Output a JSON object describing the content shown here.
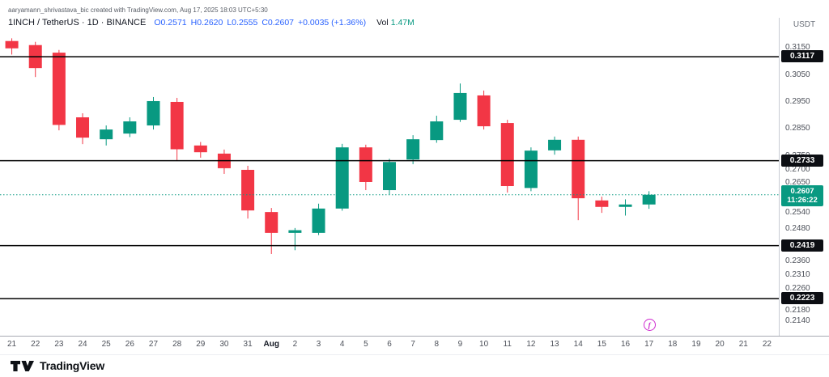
{
  "attribution": "aaryamann_shrivastava_bic created with TradingView.com, Aug 17, 2025 18:03 UTC+5:30",
  "legend": {
    "symbol": "1INCH / TetherUS · 1D · BINANCE",
    "ohlc": [
      {
        "k": "O",
        "v": "0.2571"
      },
      {
        "k": "H",
        "v": "0.2620"
      },
      {
        "k": "L",
        "v": "0.2555"
      },
      {
        "k": "C",
        "v": "0.2607"
      }
    ],
    "change": "+0.0035 (+1.36%)",
    "value_color": "#2962ff",
    "vol_label": "Vol",
    "vol_value": "1.47M",
    "vol_color": "#089981"
  },
  "price_axis": {
    "currency": "USDT",
    "ticks": [
      {
        "label": "0.3150",
        "price": 0.315
      },
      {
        "label": "0.3050",
        "price": 0.305
      },
      {
        "label": "0.2950",
        "price": 0.295
      },
      {
        "label": "0.2850",
        "price": 0.285
      },
      {
        "label": "0.2750",
        "price": 0.275
      },
      {
        "label": "0.2700",
        "price": 0.27
      },
      {
        "label": "0.2650",
        "price": 0.265
      },
      {
        "label": "0.2540",
        "price": 0.254
      },
      {
        "label": "0.2480",
        "price": 0.248
      },
      {
        "label": "0.2360",
        "price": 0.236
      },
      {
        "label": "0.2310",
        "price": 0.231
      },
      {
        "label": "0.2260",
        "price": 0.226
      },
      {
        "label": "0.2180",
        "price": 0.218
      },
      {
        "label": "0.2140",
        "price": 0.214
      }
    ]
  },
  "chart_data": {
    "type": "candlestick",
    "title": "1INCH / TetherUS · 1D · BINANCE",
    "ylim": [
      0.2086,
      0.3207
    ],
    "x_labels": [
      "21",
      "22",
      "23",
      "24",
      "25",
      "26",
      "27",
      "28",
      "29",
      "30",
      "31",
      "Aug",
      "2",
      "3",
      "4",
      "5",
      "6",
      "7",
      "8",
      "9",
      "10",
      "11",
      "12",
      "13",
      "14",
      "15",
      "16",
      "17",
      "18",
      "19",
      "20",
      "21",
      "22"
    ],
    "candles": [
      {
        "date": "Jul 21",
        "o": 0.3175,
        "h": 0.3185,
        "l": 0.3125,
        "c": 0.3148
      },
      {
        "date": "Jul 22",
        "o": 0.316,
        "h": 0.3172,
        "l": 0.3042,
        "c": 0.3075
      },
      {
        "date": "Jul 23",
        "o": 0.3132,
        "h": 0.3142,
        "l": 0.2845,
        "c": 0.2865
      },
      {
        "date": "Jul 24",
        "o": 0.2893,
        "h": 0.2908,
        "l": 0.2794,
        "c": 0.2818
      },
      {
        "date": "Jul 25",
        "o": 0.2812,
        "h": 0.2863,
        "l": 0.2789,
        "c": 0.2848
      },
      {
        "date": "Jul 26",
        "o": 0.2833,
        "h": 0.2893,
        "l": 0.282,
        "c": 0.2878
      },
      {
        "date": "Jul 27",
        "o": 0.2863,
        "h": 0.2968,
        "l": 0.2848,
        "c": 0.2953
      },
      {
        "date": "Jul 28",
        "o": 0.295,
        "h": 0.2965,
        "l": 0.2732,
        "c": 0.2775
      },
      {
        "date": "Jul 29",
        "o": 0.2789,
        "h": 0.2802,
        "l": 0.2744,
        "c": 0.2764
      },
      {
        "date": "Jul 30",
        "o": 0.2759,
        "h": 0.2774,
        "l": 0.2684,
        "c": 0.2705
      },
      {
        "date": "Jul 31",
        "o": 0.2699,
        "h": 0.2714,
        "l": 0.2519,
        "c": 0.2549
      },
      {
        "date": "Aug 1",
        "o": 0.2543,
        "h": 0.2558,
        "l": 0.2388,
        "c": 0.2466
      },
      {
        "date": "Aug 2",
        "o": 0.2466,
        "h": 0.2484,
        "l": 0.2402,
        "c": 0.2476
      },
      {
        "date": "Aug 3",
        "o": 0.2466,
        "h": 0.2574,
        "l": 0.2458,
        "c": 0.2556
      },
      {
        "date": "Aug 4",
        "o": 0.2556,
        "h": 0.2795,
        "l": 0.2548,
        "c": 0.2782
      },
      {
        "date": "Aug 5",
        "o": 0.2782,
        "h": 0.2792,
        "l": 0.2624,
        "c": 0.2654
      },
      {
        "date": "Aug 6",
        "o": 0.2624,
        "h": 0.274,
        "l": 0.2606,
        "c": 0.2728
      },
      {
        "date": "Aug 7",
        "o": 0.2737,
        "h": 0.2827,
        "l": 0.272,
        "c": 0.2812
      },
      {
        "date": "Aug 8",
        "o": 0.2809,
        "h": 0.2899,
        "l": 0.2799,
        "c": 0.2878
      },
      {
        "date": "Aug 9",
        "o": 0.2884,
        "h": 0.3018,
        "l": 0.2876,
        "c": 0.2983
      },
      {
        "date": "Aug 10",
        "o": 0.2974,
        "h": 0.2992,
        "l": 0.2848,
        "c": 0.286
      },
      {
        "date": "Aug 11",
        "o": 0.2872,
        "h": 0.2884,
        "l": 0.2615,
        "c": 0.2639
      },
      {
        "date": "Aug 12",
        "o": 0.2632,
        "h": 0.2782,
        "l": 0.262,
        "c": 0.277
      },
      {
        "date": "Aug 13",
        "o": 0.2771,
        "h": 0.2822,
        "l": 0.2755,
        "c": 0.281
      },
      {
        "date": "Aug 14",
        "o": 0.281,
        "h": 0.2822,
        "l": 0.2513,
        "c": 0.2594
      },
      {
        "date": "Aug 15",
        "o": 0.2586,
        "h": 0.26,
        "l": 0.254,
        "c": 0.2562
      },
      {
        "date": "Aug 16",
        "o": 0.2562,
        "h": 0.259,
        "l": 0.253,
        "c": 0.2571
      },
      {
        "date": "Aug 17",
        "o": 0.2571,
        "h": 0.262,
        "l": 0.2555,
        "c": 0.2607
      }
    ],
    "price_lines": [
      {
        "label": "0.3117",
        "price": 0.3117
      },
      {
        "label": "0.2733",
        "price": 0.2733
      },
      {
        "label": "0.2419",
        "price": 0.2419
      },
      {
        "label": "0.2223",
        "price": 0.2223
      }
    ],
    "last_price": {
      "label": "0.2607",
      "countdown": "11:26:22",
      "price": 0.2607
    },
    "colors": {
      "up": "#089981",
      "down": "#f23645",
      "price_line": "#000000",
      "last_bg": "#089981",
      "marker": "#cf2bcf"
    }
  },
  "event_marker": {
    "letter": "f",
    "slot": 27
  },
  "footer": {
    "brand": "TradingView"
  }
}
